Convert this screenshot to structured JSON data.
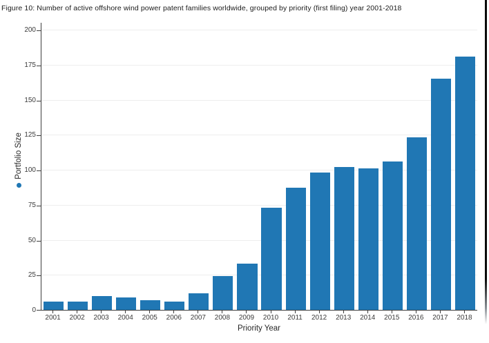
{
  "figure": {
    "title": "Figure 10: Number of active offshore wind power patent families worldwide, grouped by priority (first filing) year 2001-2018"
  },
  "chart_data": {
    "type": "bar",
    "title": "Figure 10: Number of active offshore wind power patent families worldwide, grouped by priority (first filing) year 2001-2018",
    "categories": [
      "2001",
      "2002",
      "2003",
      "2004",
      "2005",
      "2006",
      "2007",
      "2008",
      "2009",
      "2010",
      "2011",
      "2012",
      "2013",
      "2014",
      "2015",
      "2016",
      "2017",
      "2018"
    ],
    "values": [
      6,
      6,
      10,
      9,
      7,
      6,
      12,
      24,
      33,
      73,
      87,
      98,
      102,
      101,
      106,
      123,
      165,
      181
    ],
    "xlabel": "Priority Year",
    "ylabel": "Portfolio Size",
    "ylim": [
      0,
      200
    ],
    "yticks": [
      0,
      25,
      50,
      75,
      100,
      125,
      150,
      175,
      200
    ],
    "grid": true,
    "legend": {
      "label": "Portfolio Size",
      "position": "left-rotated",
      "marker": "dot"
    },
    "colors": {
      "bar": "#2077b4",
      "axis_line": "#3c3c3c",
      "gridline": "#ededed",
      "tick_text": "#3a3a3a",
      "title_text": "#1a1a1a"
    }
  }
}
